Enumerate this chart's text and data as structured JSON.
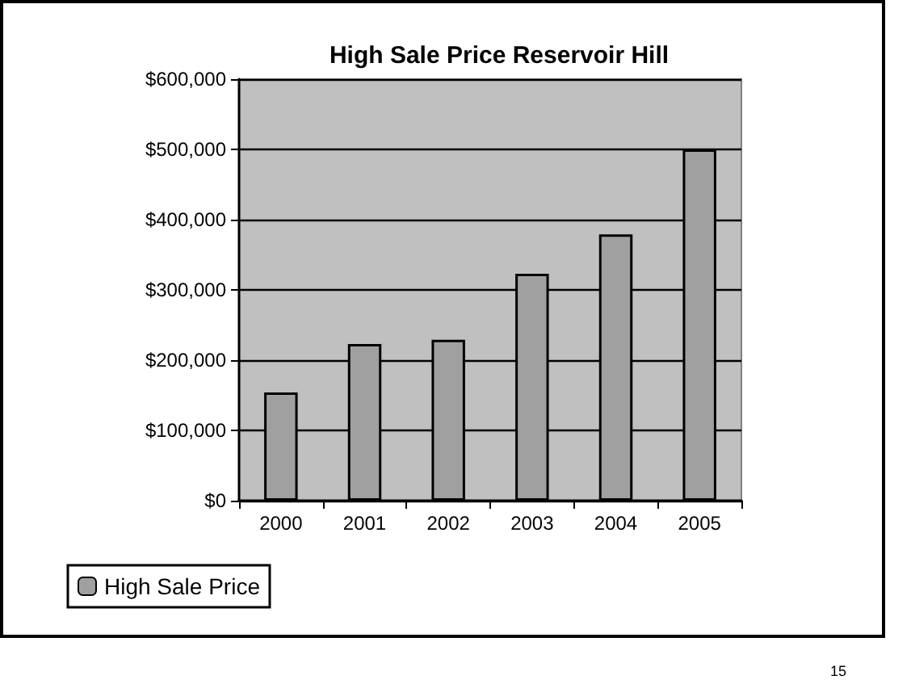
{
  "chart_data": {
    "type": "bar",
    "title": "High Sale Price Reservoir Hill",
    "categories": [
      "2000",
      "2001",
      "2002",
      "2003",
      "2004",
      "2005"
    ],
    "series": [
      {
        "name": "High Sale Price",
        "color": "#a0a0a0",
        "values": [
          154000,
          223000,
          229000,
          323000,
          379000,
          500000
        ]
      }
    ],
    "ylim": [
      0,
      600000
    ],
    "yticks": [
      {
        "value": 0,
        "label": "$0"
      },
      {
        "value": 100000,
        "label": "$100,000"
      },
      {
        "value": 200000,
        "label": "$200,000"
      },
      {
        "value": 300000,
        "label": "$300,000"
      },
      {
        "value": 400000,
        "label": "$400,000"
      },
      {
        "value": 500000,
        "label": "$500,000"
      },
      {
        "value": 600000,
        "label": "$600,000"
      }
    ],
    "grid": "y",
    "legend": "bottom left",
    "annotations": [
      "15"
    ]
  }
}
